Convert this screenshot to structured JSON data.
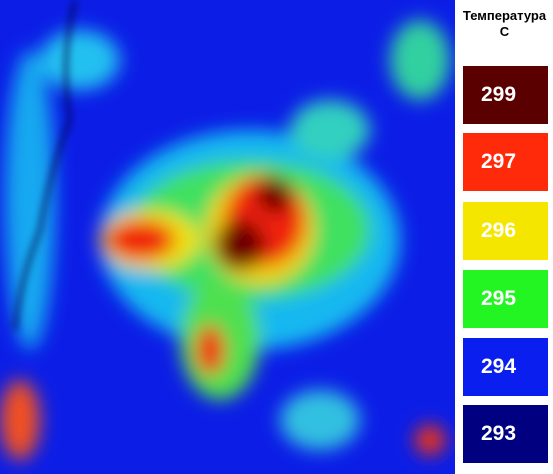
{
  "legend": {
    "title": [
      "Температура",
      "С"
    ],
    "items": [
      {
        "label": "299",
        "color": "#5a0000"
      },
      {
        "label": "297",
        "color": "#ff2a0a"
      },
      {
        "label": "296",
        "color": "#f5e600"
      },
      {
        "label": "295",
        "color": "#22f522"
      },
      {
        "label": "294",
        "color": "#0a1ef0"
      },
      {
        "label": "293",
        "color": "#000080"
      }
    ]
  }
}
